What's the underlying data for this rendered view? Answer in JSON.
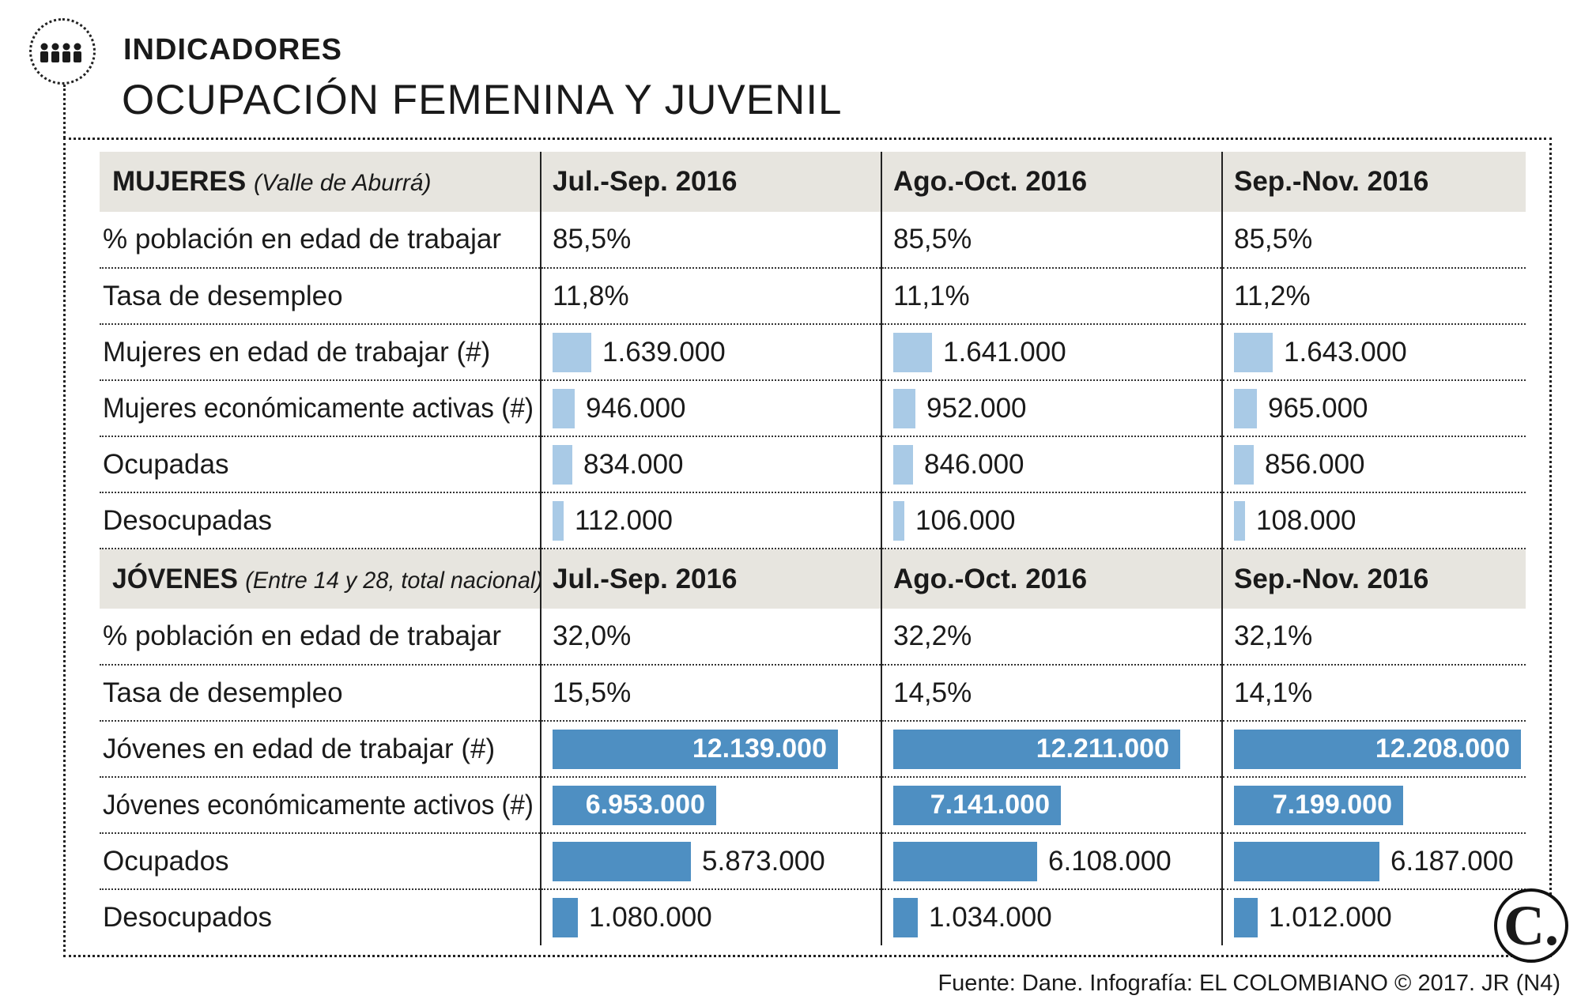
{
  "header": {
    "kicker": "INDICADORES",
    "title": "OCUPACIÓN FEMENINA Y JUVENIL"
  },
  "chart_data": {
    "type": "table",
    "title": "OCUPACIÓN FEMENINA Y JUVENIL",
    "periods": [
      "Jul.-Sep. 2016",
      "Ago.-Oct. 2016",
      "Sep.-Nov. 2016"
    ],
    "sections": [
      {
        "name": "MUJERES",
        "note": "(Valle de Aburrá)",
        "bar_max": 12211000,
        "rows": [
          {
            "label": "% población en edad de trabajar",
            "kind": "text",
            "values": [
              "85,5%",
              "85,5%",
              "85,5%"
            ]
          },
          {
            "label": "Tasa de desempleo",
            "kind": "text",
            "values": [
              "11,8%",
              "11,1%",
              "11,2%"
            ]
          },
          {
            "label": "Mujeres en edad de trabajar (#)",
            "kind": "bar",
            "numbers": [
              1639000,
              1641000,
              1643000
            ],
            "values": [
              "1.639.000",
              "1.641.000",
              "1.643.000"
            ]
          },
          {
            "label": "Mujeres económicamente activas (#)",
            "kind": "bar",
            "numbers": [
              946000,
              952000,
              965000
            ],
            "values": [
              "946.000",
              "952.000",
              "965.000"
            ]
          },
          {
            "label": "Ocupadas",
            "kind": "bar",
            "numbers": [
              834000,
              846000,
              856000
            ],
            "values": [
              "834.000",
              "846.000",
              "856.000"
            ]
          },
          {
            "label": "Desocupadas",
            "kind": "bar",
            "numbers": [
              112000,
              106000,
              108000
            ],
            "values": [
              "112.000",
              "106.000",
              "108.000"
            ]
          }
        ]
      },
      {
        "name": "JÓVENES",
        "note": "(Entre 14 y 28, total nacional)",
        "bar_max": 12211000,
        "rows": [
          {
            "label": "% población en edad de trabajar",
            "kind": "text",
            "values": [
              "32,0%",
              "32,2%",
              "32,1%"
            ]
          },
          {
            "label": "Tasa de desempleo",
            "kind": "text",
            "values": [
              "15,5%",
              "14,5%",
              "14,1%"
            ]
          },
          {
            "label": "Jóvenes en edad de trabajar (#)",
            "kind": "bar",
            "numbers": [
              12139000,
              12211000,
              12208000
            ],
            "values": [
              "12.139.000",
              "12.211.000",
              "12.208.000"
            ]
          },
          {
            "label": "Jóvenes económicamente activos (#)",
            "kind": "bar",
            "numbers": [
              6953000,
              7141000,
              7199000
            ],
            "values": [
              "6.953.000",
              "7.141.000",
              "7.199.000"
            ]
          },
          {
            "label": "Ocupados",
            "kind": "bar",
            "numbers": [
              5873000,
              6108000,
              6187000
            ],
            "values": [
              "5.873.000",
              "6.108.000",
              "6.187.000"
            ]
          },
          {
            "label": "Desocupados",
            "kind": "bar",
            "numbers": [
              1080000,
              1034000,
              1012000
            ],
            "values": [
              "1.080.000",
              "1.034.000",
              "1.012.000"
            ]
          }
        ]
      }
    ]
  },
  "colors": {
    "header_band": "#e7e5df",
    "bar_women": "#a9cae6",
    "bar_youth": "#4e8fc2",
    "bar_label_inside": "#ffffff"
  },
  "icons": {
    "section_icon": "people-group-icon",
    "publisher_logo": "el-colombiano-logo"
  },
  "logo": {
    "letter": "C."
  },
  "footer": {
    "source": "Fuente: Dane. Infografía: EL COLOMBIANO © 2017. JR (N4)"
  }
}
